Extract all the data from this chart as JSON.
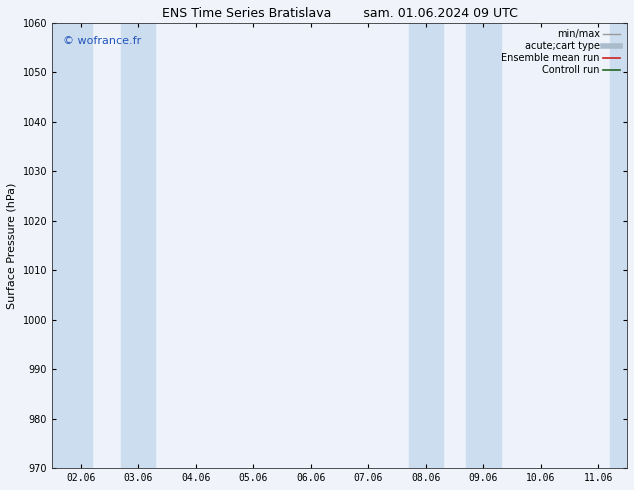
{
  "title_left": "ENS Time Series Bratislava",
  "title_right": "sam. 01.06.2024 09 UTC",
  "ylabel": "Surface Pressure (hPa)",
  "ylim": [
    970,
    1060
  ],
  "yticks": [
    970,
    980,
    990,
    1000,
    1010,
    1020,
    1030,
    1040,
    1050,
    1060
  ],
  "xtick_labels": [
    "02.06",
    "03.06",
    "04.06",
    "05.06",
    "06.06",
    "07.06",
    "08.06",
    "09.06",
    "10.06",
    "11.06"
  ],
  "xtick_positions": [
    0,
    1,
    2,
    3,
    4,
    5,
    6,
    7,
    8,
    9
  ],
  "xlim": [
    -0.5,
    9.5
  ],
  "background_color": "#f0f4fa",
  "plot_bg_color": "#eef3fb",
  "shade_bands": [
    {
      "x_start": -0.5,
      "x_end": 0.2,
      "color": "#cdddf0"
    },
    {
      "x_start": 0.7,
      "x_end": 1.3,
      "color": "#cdddf0"
    },
    {
      "x_start": 5.7,
      "x_end": 6.3,
      "color": "#cdddf0"
    },
    {
      "x_start": 6.7,
      "x_end": 7.3,
      "color": "#cdddf0"
    },
    {
      "x_start": 9.2,
      "x_end": 9.5,
      "color": "#cdddf0"
    }
  ],
  "watermark": "© wofrance.fr",
  "watermark_color": "#2255bb",
  "legend_entries": [
    {
      "label": "min/max",
      "color": "#999999",
      "lw": 1.0,
      "style": "solid"
    },
    {
      "label": "acute;cart type",
      "color": "#aabbcc",
      "lw": 4,
      "style": "solid"
    },
    {
      "label": "Ensemble mean run",
      "color": "#cc2222",
      "lw": 1.2,
      "style": "solid"
    },
    {
      "label": "Controll run",
      "color": "#226622",
      "lw": 1.2,
      "style": "solid"
    }
  ],
  "title_fontsize": 9,
  "axis_label_fontsize": 8,
  "tick_fontsize": 7,
  "legend_fontsize": 7,
  "watermark_fontsize": 8
}
